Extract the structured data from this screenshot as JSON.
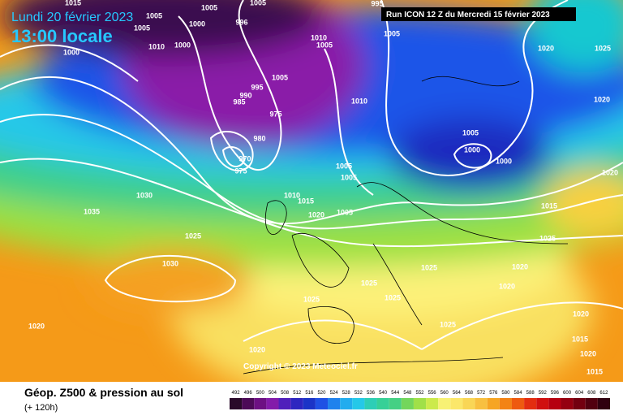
{
  "header": {
    "date": "Lundi 20 février 2023",
    "time": "13:00 locale",
    "run": "Run ICON 12 Z du Mercredi 15 février 2023"
  },
  "footer": {
    "title": "Géop. Z500 & pression au sol",
    "lead": "(+ 120h)",
    "copyright": "Copyright © 2023 Meteociel.fr"
  },
  "legend": {
    "ticks": [
      492,
      496,
      500,
      504,
      508,
      512,
      516,
      520,
      524,
      528,
      532,
      536,
      540,
      544,
      548,
      552,
      556,
      560,
      564,
      568,
      572,
      576,
      580,
      584,
      588,
      592,
      596,
      600,
      604,
      608,
      612
    ]
  },
  "isobar_labels": [
    1015,
    1005,
    1005,
    1000,
    1005,
    1005,
    996,
    995,
    1005,
    1000,
    1010,
    1000,
    1010,
    1005,
    1005,
    995,
    990,
    985,
    1010,
    975,
    980,
    970,
    975,
    1005,
    1000,
    1000,
    1005,
    1005,
    1020,
    1025,
    1020,
    1020,
    1030,
    1035,
    1010,
    1015,
    1020,
    1005,
    1025,
    1025,
    1015,
    1030,
    1025,
    1025,
    1020,
    1020,
    1025,
    1025,
    1020,
    1020,
    1025,
    1015,
    1020,
    1015,
    1020
  ]
}
